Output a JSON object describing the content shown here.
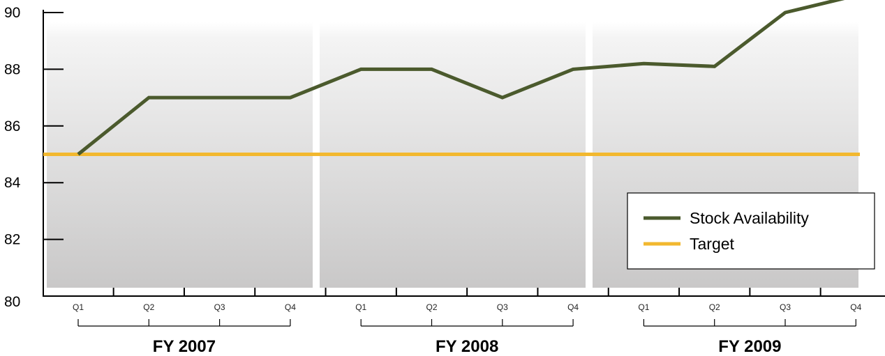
{
  "chart_data": {
    "type": "line",
    "title": "",
    "xlabel": "",
    "ylabel": "",
    "ylim": [
      80,
      90
    ],
    "yticks": [
      80,
      82,
      84,
      86,
      88,
      90
    ],
    "categories": [
      "Q1",
      "Q2",
      "Q3",
      "Q4",
      "Q1",
      "Q2",
      "Q3",
      "Q4",
      "Q1",
      "Q2",
      "Q3",
      "Q4"
    ],
    "groups": [
      {
        "label": "FY 2007",
        "quarters": [
          "Q1",
          "Q2",
          "Q3",
          "Q4"
        ]
      },
      {
        "label": "FY 2008",
        "quarters": [
          "Q1",
          "Q2",
          "Q3",
          "Q4"
        ]
      },
      {
        "label": "FY 2009",
        "quarters": [
          "Q1",
          "Q2",
          "Q3",
          "Q4"
        ]
      }
    ],
    "series": [
      {
        "name": "Stock Availability",
        "color": "#4b5a2d",
        "values": [
          85,
          87,
          87,
          87,
          88,
          88,
          87,
          88,
          88.2,
          88.1,
          90,
          90.6
        ]
      },
      {
        "name": "Target",
        "color": "#f2b82f",
        "values": [
          85,
          85,
          85,
          85,
          85,
          85,
          85,
          85,
          85,
          85,
          85,
          85
        ]
      }
    ],
    "legend_position": "bottom-right",
    "grid": false
  }
}
